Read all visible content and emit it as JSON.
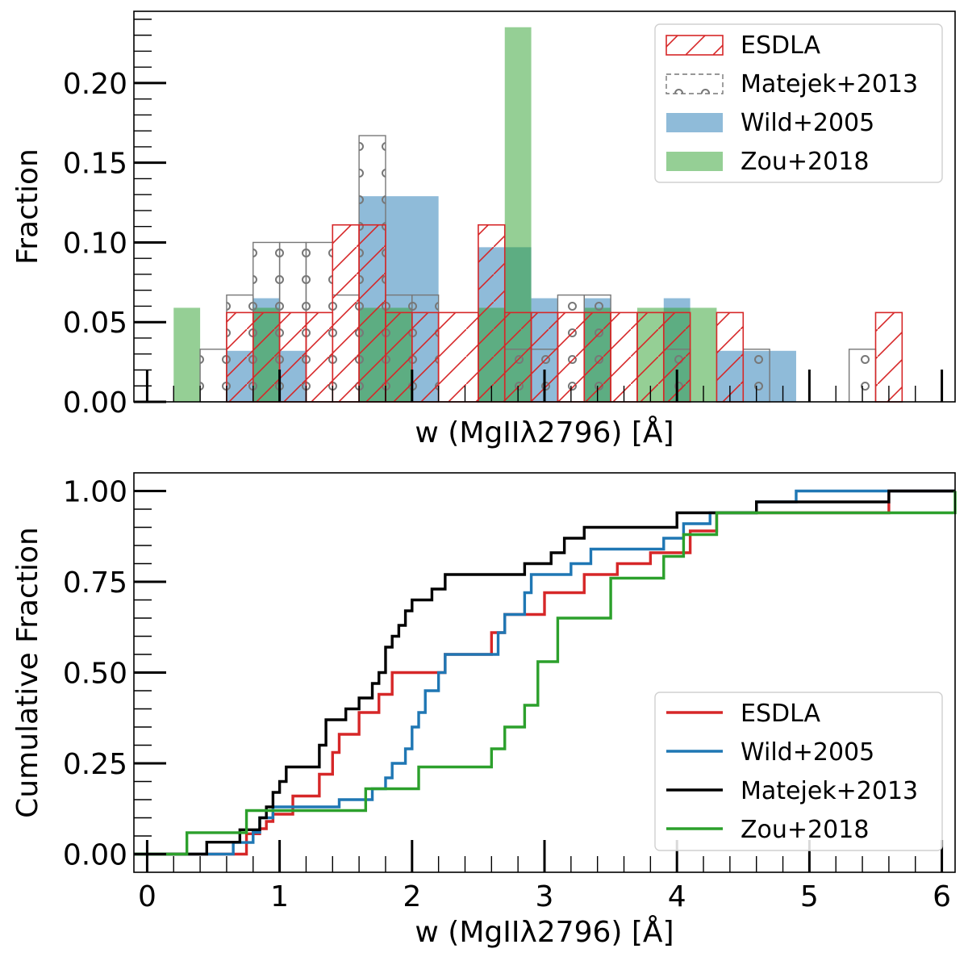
{
  "chart_data": [
    {
      "type": "histogram",
      "xlabel": "w (MgIIλ2796) [Å]",
      "ylabel": "Fraction",
      "xlim": [
        -0.1,
        6.1
      ],
      "ylim": [
        0,
        0.245
      ],
      "yticks": [
        0.0,
        0.05,
        0.1,
        0.15,
        0.2
      ],
      "ytick_labels": [
        "0.00",
        "0.05",
        "0.10",
        "0.15",
        "0.20"
      ],
      "legend_position": "top-right",
      "series": [
        {
          "name": "Wild+2005",
          "color": "#1f77b4",
          "style": "filled",
          "bins": [
            {
              "x0": 0.6,
              "x1": 0.8,
              "y": 0.032
            },
            {
              "x0": 0.8,
              "x1": 1.0,
              "y": 0.065
            },
            {
              "x0": 1.0,
              "x1": 1.2,
              "y": 0.032
            },
            {
              "x0": 1.6,
              "x1": 1.8,
              "y": 0.129
            },
            {
              "x0": 1.8,
              "x1": 2.2,
              "y": 0.129
            },
            {
              "x0": 2.5,
              "x1": 2.7,
              "y": 0.097
            },
            {
              "x0": 2.7,
              "x1": 2.9,
              "y": 0.097
            },
            {
              "x0": 2.9,
              "x1": 3.1,
              "y": 0.065
            },
            {
              "x0": 3.3,
              "x1": 3.5,
              "y": 0.065
            },
            {
              "x0": 3.9,
              "x1": 4.1,
              "y": 0.065
            },
            {
              "x0": 4.3,
              "x1": 4.7,
              "y": 0.032
            },
            {
              "x0": 4.7,
              "x1": 4.9,
              "y": 0.032
            }
          ]
        },
        {
          "name": "Zou+2018",
          "color": "#2ca02c",
          "style": "filled",
          "bins": [
            {
              "x0": 0.2,
              "x1": 0.4,
              "y": 0.059
            },
            {
              "x0": 0.8,
              "x1": 1.0,
              "y": 0.059
            },
            {
              "x0": 1.6,
              "x1": 2.0,
              "y": 0.059
            },
            {
              "x0": 2.5,
              "x1": 2.7,
              "y": 0.059
            },
            {
              "x0": 2.7,
              "x1": 2.9,
              "y": 0.235
            },
            {
              "x0": 3.3,
              "x1": 3.5,
              "y": 0.059
            },
            {
              "x0": 3.7,
              "x1": 4.3,
              "y": 0.059
            }
          ]
        },
        {
          "name": "Matejek+2013",
          "color": "#555555",
          "style": "hatch-circles",
          "bins": [
            {
              "x0": 0.4,
              "x1": 0.6,
              "y": 0.033
            },
            {
              "x0": 0.6,
              "x1": 0.8,
              "y": 0.067
            },
            {
              "x0": 0.8,
              "x1": 1.0,
              "y": 0.1
            },
            {
              "x0": 1.0,
              "x1": 1.2,
              "y": 0.1
            },
            {
              "x0": 1.2,
              "x1": 1.4,
              "y": 0.1
            },
            {
              "x0": 1.4,
              "x1": 1.6,
              "y": 0.067
            },
            {
              "x0": 1.6,
              "x1": 1.8,
              "y": 0.167
            },
            {
              "x0": 1.8,
              "x1": 2.0,
              "y": 0.067
            },
            {
              "x0": 2.0,
              "x1": 2.2,
              "y": 0.067
            },
            {
              "x0": 2.7,
              "x1": 2.9,
              "y": 0.033
            },
            {
              "x0": 2.9,
              "x1": 3.1,
              "y": 0.033
            },
            {
              "x0": 3.1,
              "x1": 3.3,
              "y": 0.067
            },
            {
              "x0": 3.3,
              "x1": 3.5,
              "y": 0.067
            },
            {
              "x0": 3.9,
              "x1": 4.1,
              "y": 0.033
            },
            {
              "x0": 4.5,
              "x1": 4.7,
              "y": 0.033
            },
            {
              "x0": 5.3,
              "x1": 5.5,
              "y": 0.033
            }
          ]
        },
        {
          "name": "ESDLA",
          "color": "#d62728",
          "style": "hatch-slash",
          "bins": [
            {
              "x0": 0.6,
              "x1": 0.8,
              "y": 0.056
            },
            {
              "x0": 0.8,
              "x1": 1.0,
              "y": 0.056
            },
            {
              "x0": 1.0,
              "x1": 1.2,
              "y": 0.056
            },
            {
              "x0": 1.2,
              "x1": 1.4,
              "y": 0.056
            },
            {
              "x0": 1.4,
              "x1": 1.6,
              "y": 0.111
            },
            {
              "x0": 1.6,
              "x1": 1.8,
              "y": 0.111
            },
            {
              "x0": 1.8,
              "x1": 2.0,
              "y": 0.056
            },
            {
              "x0": 2.0,
              "x1": 2.2,
              "y": 0.056
            },
            {
              "x0": 2.2,
              "x1": 2.5,
              "y": 0.056
            },
            {
              "x0": 2.5,
              "x1": 2.7,
              "y": 0.111
            },
            {
              "x0": 2.7,
              "x1": 2.9,
              "y": 0.056
            },
            {
              "x0": 2.9,
              "x1": 3.1,
              "y": 0.056
            },
            {
              "x0": 3.1,
              "x1": 3.3,
              "y": 0.056
            },
            {
              "x0": 3.3,
              "x1": 3.5,
              "y": 0.056
            },
            {
              "x0": 3.5,
              "x1": 3.7,
              "y": 0.056
            },
            {
              "x0": 3.7,
              "x1": 3.9,
              "y": 0.056
            },
            {
              "x0": 3.9,
              "x1": 4.1,
              "y": 0.056
            },
            {
              "x0": 4.3,
              "x1": 4.5,
              "y": 0.056
            },
            {
              "x0": 5.5,
              "x1": 5.7,
              "y": 0.056
            }
          ]
        }
      ],
      "legend": [
        "ESDLA",
        "Matejek+2013",
        "Wild+2005",
        "Zou+2018"
      ]
    },
    {
      "type": "line",
      "subtype": "cumulative-step",
      "xlabel": "w (MgIIλ2796) [Å]",
      "ylabel": "Cumulative Fraction",
      "xlim": [
        -0.1,
        6.1
      ],
      "ylim": [
        -0.05,
        1.05
      ],
      "xticks": [
        0,
        1,
        2,
        3,
        4,
        5,
        6
      ],
      "xtick_labels": [
        "0",
        "1",
        "2",
        "3",
        "4",
        "5",
        "6"
      ],
      "yticks": [
        0.0,
        0.25,
        0.5,
        0.75,
        1.0
      ],
      "ytick_labels": [
        "0.00",
        "0.25",
        "0.50",
        "0.75",
        "1.00"
      ],
      "legend_position": "bottom-right",
      "series": [
        {
          "name": "ESDLA",
          "color": "#d62728",
          "x": [
            -0.1,
            0.75,
            0.85,
            0.9,
            0.95,
            1.0,
            1.1,
            1.15,
            1.3,
            1.4,
            1.45,
            1.55,
            1.6,
            1.7,
            1.75,
            1.85,
            1.9,
            2.15,
            2.25,
            2.55,
            2.6,
            2.7,
            2.75,
            3.0,
            3.1,
            3.25,
            3.3,
            3.45,
            3.55,
            3.8,
            4.1,
            4.3,
            4.4,
            5.6,
            6.1
          ],
          "y": [
            0.0,
            0.056,
            0.07,
            0.09,
            0.11,
            0.11,
            0.16,
            0.16,
            0.22,
            0.28,
            0.33,
            0.33,
            0.39,
            0.39,
            0.44,
            0.5,
            0.5,
            0.5,
            0.55,
            0.55,
            0.61,
            0.66,
            0.66,
            0.72,
            0.72,
            0.72,
            0.77,
            0.77,
            0.8,
            0.83,
            0.89,
            0.94,
            0.94,
            1.0,
            1.0
          ]
        },
        {
          "name": "Wild+2005",
          "color": "#1f77b4",
          "x": [
            -0.1,
            0.65,
            0.8,
            0.85,
            0.95,
            1.05,
            1.25,
            1.45,
            1.7,
            1.8,
            1.85,
            1.95,
            2.0,
            2.05,
            2.1,
            2.2,
            2.25,
            2.5,
            2.65,
            2.7,
            2.85,
            2.9,
            3.05,
            3.2,
            3.35,
            3.55,
            3.9,
            4.05,
            4.25,
            4.45,
            4.6,
            4.9,
            6.1
          ],
          "y": [
            0.0,
            0.032,
            0.06,
            0.1,
            0.13,
            0.13,
            0.13,
            0.15,
            0.18,
            0.21,
            0.25,
            0.29,
            0.35,
            0.39,
            0.45,
            0.5,
            0.55,
            0.55,
            0.61,
            0.66,
            0.72,
            0.77,
            0.77,
            0.8,
            0.84,
            0.84,
            0.87,
            0.91,
            0.94,
            0.94,
            0.97,
            1.0,
            1.0
          ]
        },
        {
          "name": "Matejek+2013",
          "color": "#000000",
          "x": [
            -0.1,
            0.45,
            0.7,
            0.85,
            0.9,
            0.95,
            1.0,
            1.05,
            1.3,
            1.35,
            1.5,
            1.6,
            1.7,
            1.75,
            1.8,
            1.85,
            1.9,
            1.95,
            2.0,
            2.05,
            2.15,
            2.25,
            2.75,
            2.85,
            3.05,
            3.15,
            3.3,
            3.7,
            4.0,
            4.6,
            5.6,
            6.1
          ],
          "y": [
            0.0,
            0.033,
            0.067,
            0.1,
            0.13,
            0.17,
            0.2,
            0.24,
            0.3,
            0.37,
            0.4,
            0.43,
            0.47,
            0.5,
            0.57,
            0.6,
            0.63,
            0.67,
            0.7,
            0.7,
            0.73,
            0.77,
            0.77,
            0.8,
            0.83,
            0.87,
            0.9,
            0.9,
            0.94,
            0.97,
            1.0,
            1.0
          ]
        },
        {
          "name": "Zou+2018",
          "color": "#2ca02c",
          "x": [
            -0.1,
            0.3,
            0.75,
            0.8,
            1.65,
            2.05,
            2.6,
            2.7,
            2.85,
            2.95,
            3.1,
            3.5,
            3.9,
            4.05,
            4.3,
            6.1
          ],
          "y": [
            0.0,
            0.059,
            0.12,
            0.12,
            0.18,
            0.24,
            0.29,
            0.35,
            0.41,
            0.53,
            0.65,
            0.76,
            0.82,
            0.88,
            0.94,
            1.0
          ]
        }
      ],
      "legend": [
        "ESDLA",
        "Wild+2005",
        "Matejek+2013",
        "Zou+2018"
      ]
    }
  ]
}
